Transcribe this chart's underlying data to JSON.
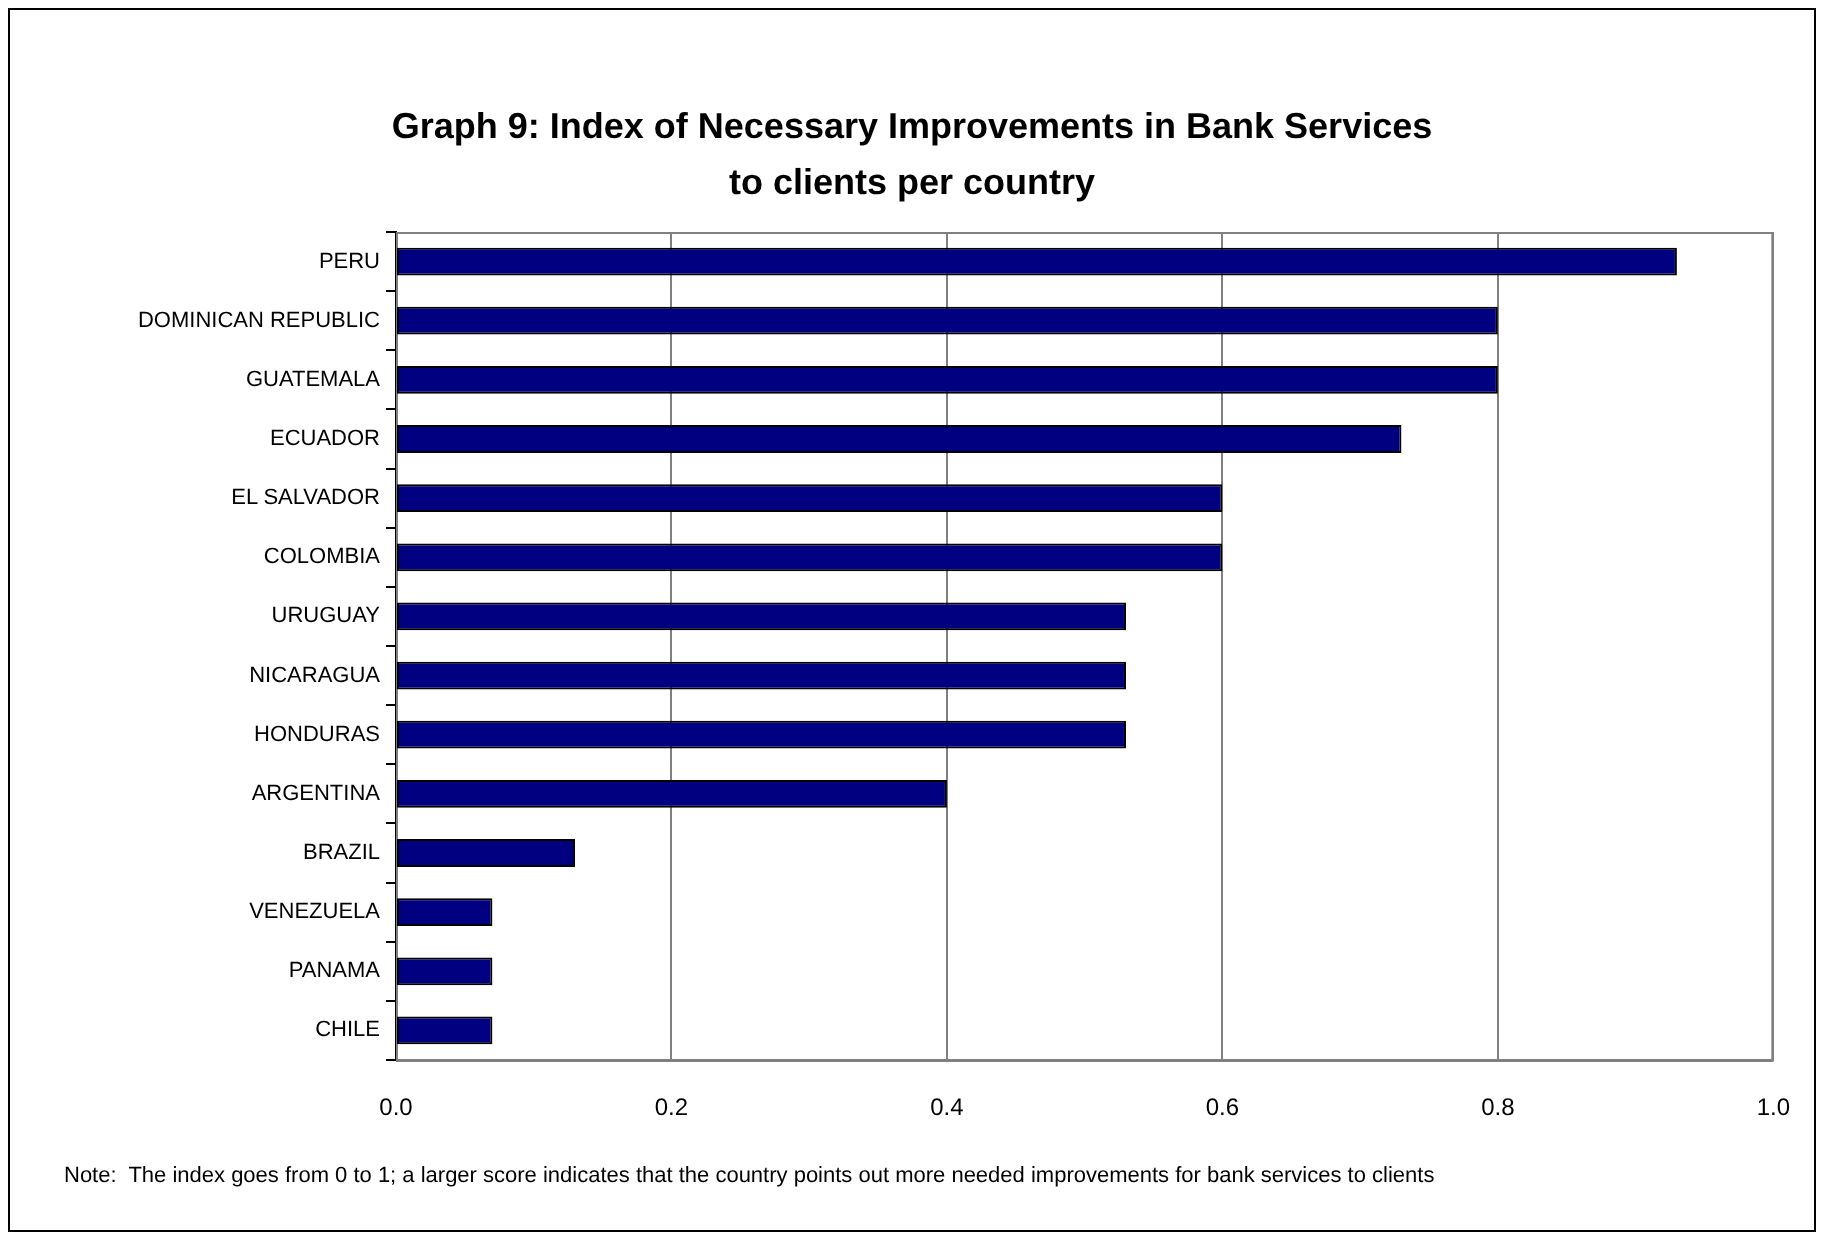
{
  "chart_data": {
    "type": "bar",
    "orientation": "horizontal",
    "title": "Graph 9: Index of Necessary Improvements in Bank Services to clients per country",
    "categories": [
      "PERU",
      "DOMINICAN REPUBLIC",
      "GUATEMALA",
      "ECUADOR",
      "EL SALVADOR",
      "COLOMBIA",
      "URUGUAY",
      "NICARAGUA",
      "HONDURAS",
      "ARGENTINA",
      "BRAZIL",
      "VENEZUELA",
      "PANAMA",
      "CHILE"
    ],
    "values": [
      0.93,
      0.8,
      0.8,
      0.73,
      0.6,
      0.6,
      0.53,
      0.53,
      0.53,
      0.4,
      0.13,
      0.07,
      0.07,
      0.07
    ],
    "color": "#000080",
    "xlim": [
      0,
      1
    ],
    "xticks": [
      {
        "value": 0,
        "label": "0.0"
      },
      0.2,
      0.4,
      0.6,
      0.8,
      {
        "value": 1,
        "label": "1.0"
      }
    ],
    "grid": "x",
    "annotations": [
      "Note:  The index goes from 0 to 1; a larger score indicates that the country points out more needed improvements for bank services to clients"
    ]
  }
}
